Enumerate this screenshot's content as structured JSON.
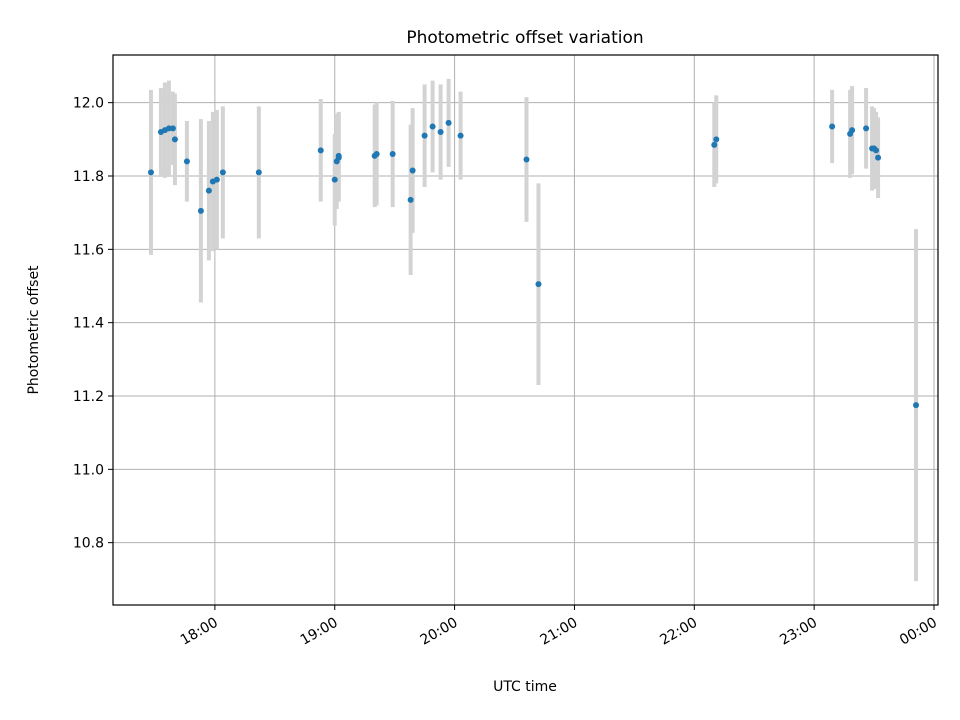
{
  "chart_data": {
    "type": "scatter",
    "title": "Photometric offset variation",
    "xlabel": "UTC time",
    "ylabel": "Photometric offset",
    "x_ticks": [
      "18:00",
      "19:00",
      "20:00",
      "21:00",
      "22:00",
      "23:00",
      "00:00"
    ],
    "y_ticks": [
      "10.8",
      "11.0",
      "11.2",
      "11.4",
      "11.6",
      "11.8",
      "12.0"
    ],
    "xlim": [
      "17:09",
      "00:02"
    ],
    "ylim": [
      10.63,
      12.13
    ],
    "grid": true,
    "colors": {
      "point": "#1f77b4",
      "errorbar": "#d3d3d3",
      "grid": "#b0b0b0"
    },
    "series": [
      {
        "x": [
          "17:28",
          "17:33",
          "17:35",
          "17:37",
          "17:39",
          "17:40",
          "17:46",
          "17:53",
          "17:57",
          "17:59",
          "18:01",
          "18:04",
          "18:22",
          "18:53",
          "19:00",
          "19:01",
          "19:02",
          "19:02",
          "19:20",
          "19:21",
          "19:29",
          "19:38",
          "19:39",
          "19:45",
          "19:49",
          "19:53",
          "19:57",
          "20:03",
          "20:36",
          "20:42",
          "22:10",
          "22:11",
          "23:09",
          "23:18",
          "23:19",
          "23:26",
          "23:29",
          "23:30",
          "23:31",
          "23:32",
          "23:51"
        ],
        "y": [
          11.81,
          11.92,
          11.925,
          11.93,
          11.93,
          11.9,
          11.84,
          11.705,
          11.76,
          11.785,
          11.79,
          11.81,
          11.81,
          11.87,
          11.79,
          11.84,
          11.85,
          11.855,
          11.855,
          11.86,
          11.86,
          11.735,
          11.815,
          11.91,
          11.935,
          11.92,
          11.945,
          11.91,
          11.845,
          11.505,
          11.885,
          11.9,
          11.935,
          11.915,
          11.925,
          11.93,
          11.875,
          11.875,
          11.87,
          11.85,
          11.175
        ],
        "err": [
          0.225,
          0.12,
          0.13,
          0.13,
          0.1,
          0.125,
          0.11,
          0.25,
          0.19,
          0.19,
          0.19,
          0.18,
          0.18,
          0.14,
          0.125,
          0.13,
          0.12,
          0.12,
          0.14,
          0.14,
          0.145,
          0.205,
          0.17,
          0.14,
          0.125,
          0.13,
          0.12,
          0.12,
          0.17,
          0.275,
          0.115,
          0.12,
          0.1,
          0.12,
          0.12,
          0.11,
          0.115,
          0.11,
          0.105,
          0.11,
          0.48
        ]
      }
    ]
  }
}
